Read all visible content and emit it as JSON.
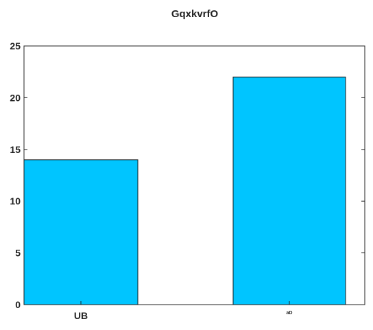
{
  "chart_data": {
    "type": "bar",
    "title": "GqxkvrfO",
    "xlabel": "",
    "ylabel": "",
    "categories": [
      "UB",
      "aD"
    ],
    "values": [
      14,
      22
    ],
    "ylim": [
      0,
      25
    ],
    "yticks": [
      0,
      5,
      10,
      15,
      20,
      25
    ],
    "grid": false,
    "bar_color": "#00c5ff",
    "bar_edge_color": "#1a1a1a"
  }
}
